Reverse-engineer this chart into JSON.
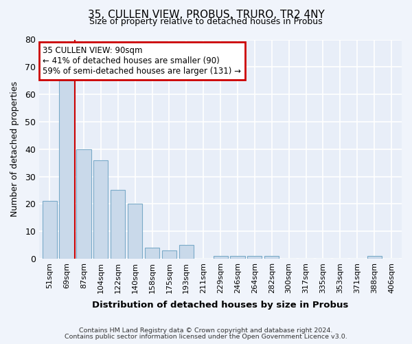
{
  "title1": "35, CULLEN VIEW, PROBUS, TRURO, TR2 4NY",
  "title2": "Size of property relative to detached houses in Probus",
  "xlabel": "Distribution of detached houses by size in Probus",
  "ylabel": "Number of detached properties",
  "categories": [
    "51sqm",
    "69sqm",
    "87sqm",
    "104sqm",
    "122sqm",
    "140sqm",
    "158sqm",
    "175sqm",
    "193sqm",
    "211sqm",
    "229sqm",
    "246sqm",
    "264sqm",
    "282sqm",
    "300sqm",
    "317sqm",
    "335sqm",
    "353sqm",
    "371sqm",
    "388sqm",
    "406sqm"
  ],
  "values": [
    21,
    65,
    40,
    36,
    25,
    20,
    4,
    3,
    5,
    0,
    1,
    1,
    1,
    1,
    0,
    0,
    0,
    0,
    0,
    1,
    0
  ],
  "bar_color": "#c9d9ea",
  "bar_edge_color": "#7aaac8",
  "annotation_text": "35 CULLEN VIEW: 90sqm\n← 41% of detached houses are smaller (90)\n59% of semi-detached houses are larger (131) →",
  "annotation_box_color": "#ffffff",
  "annotation_box_edge": "#cc0000",
  "vline_color": "#cc0000",
  "vline_x_idx": 2,
  "ylim": [
    0,
    80
  ],
  "yticks": [
    0,
    10,
    20,
    30,
    40,
    50,
    60,
    70,
    80
  ],
  "bg_color": "#e8eef8",
  "grid_color": "#ffffff",
  "fig_bg_color": "#f0f4fb",
  "footnote1": "Contains HM Land Registry data © Crown copyright and database right 2024.",
  "footnote2": "Contains public sector information licensed under the Open Government Licence v3.0."
}
